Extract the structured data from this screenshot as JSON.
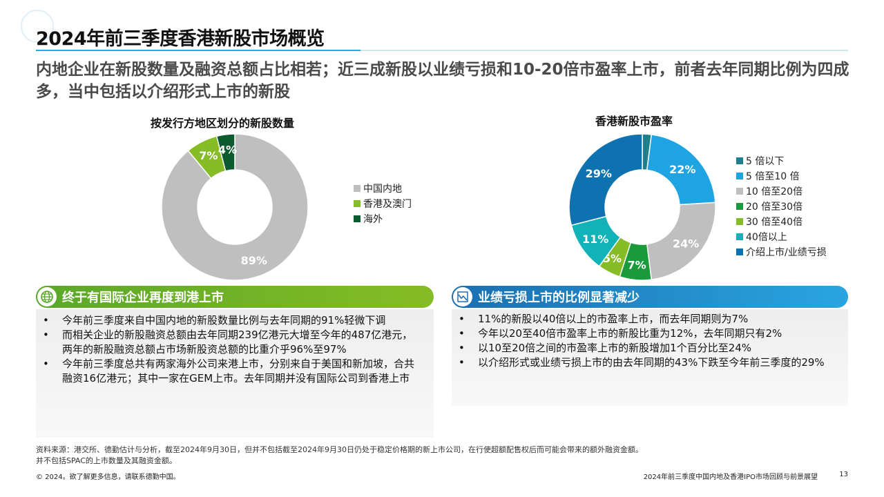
{
  "title": "2024年前三季度香港新股市场概览",
  "subtitle": "内地企业在新股数量及融资总额占比相若；近三成新股以业绩亏损和10-20倍市盈率上市，前者去年同期比例为四成多，当中包括以介绍形式上市的新股",
  "colors": {
    "accent_blue": "#26a9e0",
    "green_header": "#86bc25",
    "blue_header": "#1b6fb0"
  },
  "chart_data": [
    {
      "type": "pie",
      "variant": "donut",
      "title": "按发行方地区划分的新股数量",
      "slices": [
        {
          "label": "中国内地",
          "value": 89,
          "color": "#bfbfbf",
          "display": "89%"
        },
        {
          "label": "香港及澳门",
          "value": 7,
          "color": "#86bc25",
          "display": "7%"
        },
        {
          "label": "海外",
          "value": 4,
          "color": "#0d5a2e",
          "display": "4%"
        }
      ],
      "legend_position": "right"
    },
    {
      "type": "pie",
      "variant": "donut",
      "title": "香港新股市盈率",
      "slices": [
        {
          "label": "5 倍以下",
          "value": 2,
          "color": "#1f7f8c",
          "display": ""
        },
        {
          "label": "5 倍至10 倍",
          "value": 22,
          "color": "#1fa4e3",
          "display": "22%"
        },
        {
          "label": "10 倍至20倍",
          "value": 24,
          "color": "#bfbfbf",
          "display": "24%"
        },
        {
          "label": "20 倍至30倍",
          "value": 7,
          "color": "#1a9a3a",
          "display": "7%"
        },
        {
          "label": "30 倍至40倍",
          "value": 5,
          "color": "#86bc25",
          "display": "5%"
        },
        {
          "label": "40倍以上",
          "value": 11,
          "color": "#11b2b8",
          "display": "11%"
        },
        {
          "label": "介绍上市/业绩亏损",
          "value": 29,
          "color": "#0e72b0",
          "display": "29%"
        }
      ],
      "legend_position": "right"
    }
  ],
  "panels": {
    "left": {
      "header": "终于有国际企业再度到港上市",
      "icon": "globe-icon",
      "bullets": [
        "今年前三季度来自中国内地的新股数量比例与去年同期的91%轻微下调",
        "而相关企业的新股融资总额由去年同期239亿港元大增至今年的487亿港元，两年的新股融资总额占市场新股资总额的比重介乎96%至97%",
        "今年前三季度总共有两家海外公司来港上市，分别来自于美国和新加坡，合共融资16亿港元；其中一家在GEM上市。去年同期并没有国际公司到香港上市"
      ]
    },
    "right": {
      "header": "业绩亏损上市的比例显著减少",
      "icon": "line-chart-icon",
      "bullets": [
        "11%的新股以40倍以上的市盈率上市，而去年同期则为7%",
        "今年以20至40倍市盈率上市的新股比重为12%，去年同期只有2%",
        "以10至20倍之间的市盈率上市的新股增加1个百分比至24%",
        "以介绍形式或业绩亏损上市的由去年同期的43%下跌至今年前三季度的29%"
      ]
    }
  },
  "footnote": {
    "line1": "资料来源：港交所、德勤估计与分析，截至2024年9月30日，但并不包括截至2024年9月30日仍处于稳定价格期的新上市公司，在行使超额配售权后而可能会带来的额外融资金额。",
    "line2": "并不包括SPAC的上市数量及其融资金额。"
  },
  "footer": {
    "copyright": "© 2024。欲了解更多信息，请联系德勤中国。",
    "report_title": "2024年前三季度中国内地及香港IPO市场回顾与前景展望",
    "page": "13"
  }
}
